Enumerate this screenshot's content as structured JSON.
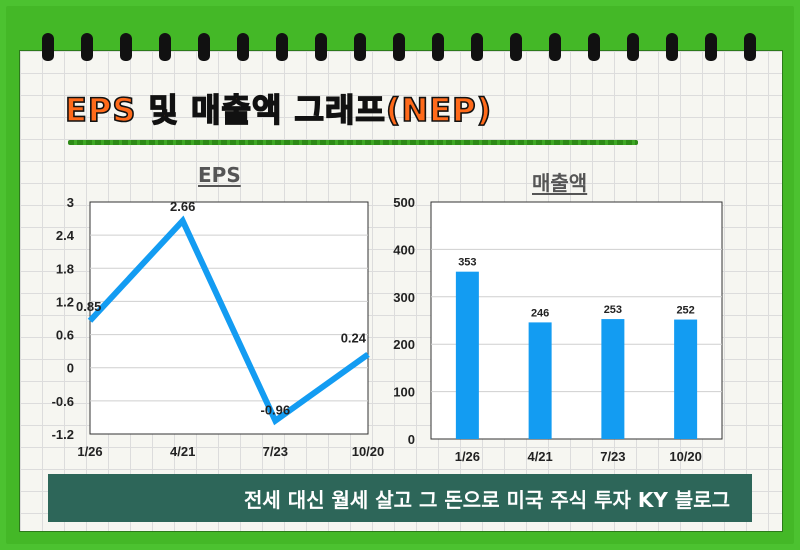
{
  "page": {
    "title": "EPS 및 매출액 그래프(NEP)",
    "banner": "전세 대신 월세 살고 그 돈으로 미국 주식 투자 KY 블로그"
  },
  "colors": {
    "accent": "#ff6a1a",
    "series": "#139cf2",
    "frame": "#4cc230",
    "banner": "#2d6659"
  },
  "chart_data": [
    {
      "type": "line",
      "title": "EPS",
      "categories": [
        "1/26",
        "4/21",
        "7/23",
        "10/20"
      ],
      "values": [
        0.85,
        2.66,
        -0.96,
        0.24
      ],
      "data_labels": [
        "0.85",
        "2.66",
        "-0.96",
        "0.24"
      ],
      "ylim": [
        -1.2,
        3
      ],
      "yticks": [
        "3",
        "2.4",
        "1.8",
        "1.2",
        "0.6",
        "0",
        "-0.6",
        "-1.2"
      ],
      "ytick_values": [
        3,
        2.4,
        1.8,
        1.2,
        0.6,
        0,
        -0.6,
        -1.2
      ],
      "grid": true,
      "legend": "none"
    },
    {
      "type": "bar",
      "title": "매출액",
      "categories": [
        "1/26",
        "4/21",
        "7/23",
        "10/20"
      ],
      "values": [
        353,
        246,
        253,
        252
      ],
      "data_labels": [
        "353",
        "246",
        "253",
        "252"
      ],
      "ylim": [
        0,
        500
      ],
      "yticks": [
        "500",
        "400",
        "300",
        "200",
        "100",
        "0"
      ],
      "ytick_values": [
        500,
        400,
        300,
        200,
        100,
        0
      ],
      "grid": true,
      "legend": "none"
    }
  ]
}
